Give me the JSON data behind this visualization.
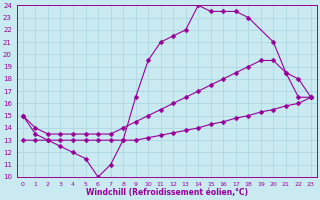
{
  "xlabel": "Windchill (Refroidissement éolien,°C)",
  "bg_color": "#c8eaf0",
  "grid_color": "#b0d8e0",
  "line_color": "#990099",
  "xlim": [
    -0.5,
    23.5
  ],
  "ylim": [
    10,
    24
  ],
  "xticks": [
    0,
    1,
    2,
    3,
    4,
    5,
    6,
    7,
    8,
    9,
    10,
    11,
    12,
    13,
    14,
    15,
    16,
    17,
    18,
    19,
    20,
    21,
    22,
    23
  ],
  "yticks": [
    10,
    11,
    12,
    13,
    14,
    15,
    16,
    17,
    18,
    19,
    20,
    21,
    22,
    23,
    24
  ],
  "line1_x": [
    0,
    1,
    2,
    3,
    4,
    5,
    6,
    7,
    8,
    9,
    10,
    11,
    12,
    13,
    14,
    15,
    16,
    17,
    18,
    20,
    21,
    22,
    23
  ],
  "line1_y": [
    15.0,
    13.5,
    13.0,
    12.5,
    12.0,
    11.5,
    10.0,
    11.0,
    13.0,
    16.5,
    19.5,
    21.0,
    21.5,
    22.0,
    24.0,
    23.5,
    23.5,
    23.5,
    23.0,
    21.0,
    18.5,
    16.5,
    16.5
  ],
  "line2_x": [
    0,
    1,
    2,
    3,
    4,
    5,
    6,
    7,
    8,
    9,
    10,
    11,
    12,
    13,
    14,
    15,
    16,
    17,
    18,
    19,
    20,
    21,
    22,
    23
  ],
  "line2_y": [
    15.0,
    14.0,
    13.5,
    13.5,
    13.5,
    13.5,
    13.5,
    13.5,
    14.0,
    14.5,
    15.0,
    15.5,
    16.0,
    16.5,
    17.0,
    17.5,
    18.0,
    18.5,
    19.0,
    19.5,
    19.5,
    18.5,
    18.0,
    16.5
  ],
  "line3_x": [
    0,
    1,
    2,
    3,
    4,
    5,
    6,
    7,
    8,
    9,
    10,
    11,
    12,
    13,
    14,
    15,
    16,
    17,
    18,
    19,
    20,
    21,
    22,
    23
  ],
  "line3_y": [
    13.0,
    13.0,
    13.0,
    13.0,
    13.0,
    13.0,
    13.0,
    13.0,
    13.0,
    13.0,
    13.2,
    13.4,
    13.6,
    13.8,
    14.0,
    14.3,
    14.5,
    14.8,
    15.0,
    15.3,
    15.5,
    15.8,
    16.0,
    16.5
  ]
}
